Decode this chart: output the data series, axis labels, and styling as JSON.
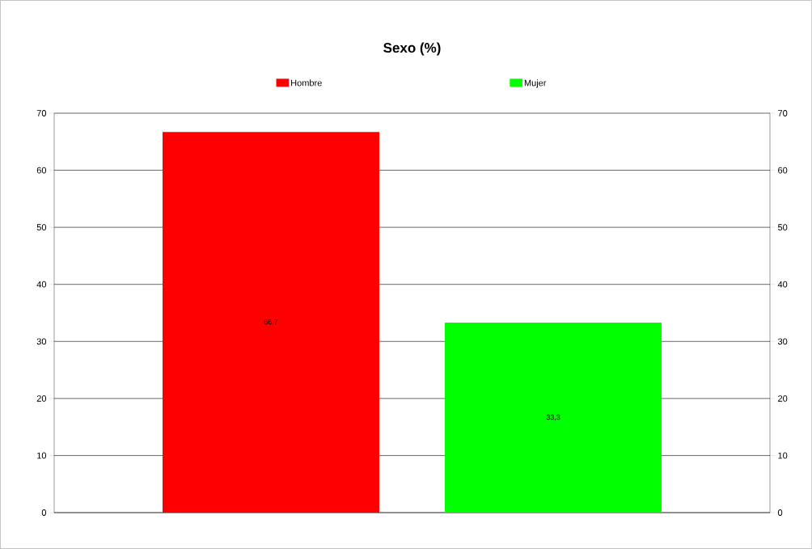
{
  "chart_data": {
    "type": "bar",
    "title": "Sexo (%)",
    "categories": [
      null
    ],
    "series": [
      {
        "name": "Hombre",
        "color": "#ff0000",
        "values": [
          66.7
        ],
        "value_labels": [
          "66,7"
        ]
      },
      {
        "name": "Mujer",
        "color": "#00ff00",
        "values": [
          33.3
        ],
        "value_labels": [
          "33,3"
        ]
      }
    ],
    "ylim": [
      0,
      70
    ],
    "yticks": [
      0,
      10,
      20,
      30,
      40,
      50,
      60,
      70
    ],
    "y2lim": [
      0,
      70
    ],
    "y2ticks": [
      0,
      10,
      20,
      30,
      40,
      50,
      60,
      70
    ],
    "grid": "y",
    "legend": "top"
  }
}
